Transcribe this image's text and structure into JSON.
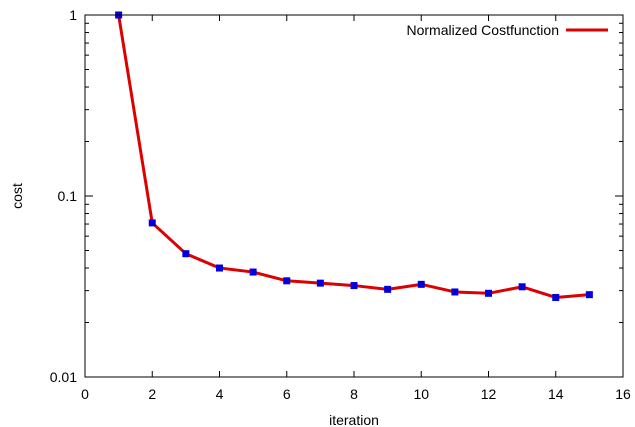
{
  "chart_data": {
    "type": "line",
    "xlabel": "iteration",
    "ylabel": "cost",
    "xlim": [
      0,
      16
    ],
    "ylim": [
      0.01,
      1
    ],
    "yscale": "log",
    "x_ticks": [
      "0",
      "2",
      "4",
      "6",
      "8",
      "10",
      "12",
      "14",
      "16"
    ],
    "y_ticks": [
      "0.01",
      "0.1",
      "1"
    ],
    "grid": false,
    "legend_position": "top-right",
    "series": [
      {
        "name": "Normalized Costfunction",
        "line_color": "#dd0000",
        "marker_color": "#0000dd",
        "marker": "square",
        "x": [
          1,
          2,
          3,
          4,
          5,
          6,
          7,
          8,
          9,
          10,
          11,
          12,
          13,
          14,
          15
        ],
        "y": [
          1.0,
          0.071,
          0.048,
          0.04,
          0.038,
          0.034,
          0.033,
          0.032,
          0.0305,
          0.0325,
          0.0295,
          0.029,
          0.0315,
          0.0275,
          0.0285
        ]
      }
    ]
  }
}
